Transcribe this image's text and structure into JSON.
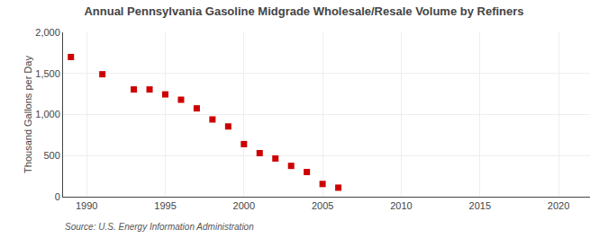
{
  "chart_data": {
    "type": "scatter",
    "title": "Annual Pennsylvania Gasoline Midgrade Wholesale/Resale Volume by Refiners",
    "ylabel": "Thousand Gallons per Day",
    "annotations": [
      "Source: U.S. Energy Information Administration"
    ],
    "x": [
      1989,
      1991,
      1993,
      1994,
      1995,
      1996,
      1997,
      1998,
      1999,
      2000,
      2001,
      2002,
      2003,
      2004,
      2005,
      2006
    ],
    "values": [
      1700,
      1490,
      1305,
      1305,
      1245,
      1180,
      1075,
      940,
      855,
      640,
      530,
      465,
      375,
      300,
      155,
      110
    ],
    "color": "#cc0000",
    "marker": "square",
    "xlim": [
      1988.5,
      2022
    ],
    "ylim": [
      0,
      2000
    ],
    "xticks": [
      1990,
      1995,
      2000,
      2005,
      2010,
      2015,
      2020
    ],
    "yticks": [
      0,
      500,
      {
        "value": 1000,
        "label": "1,000"
      },
      {
        "value": 1500,
        "label": "1,500"
      },
      {
        "value": 2000,
        "label": "2,000"
      }
    ],
    "grid": true
  }
}
